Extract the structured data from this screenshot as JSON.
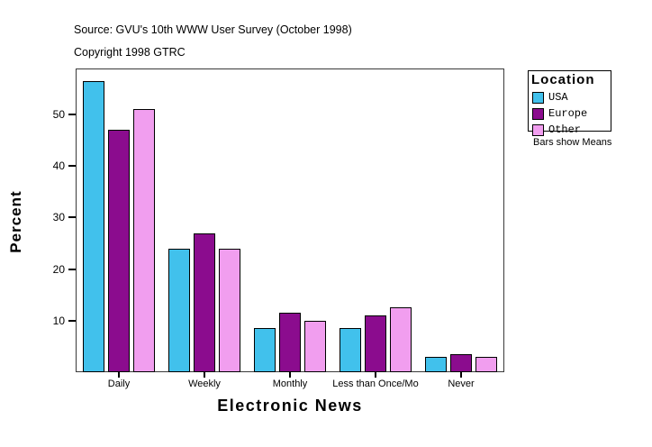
{
  "header": {
    "source_line": "Source: GVU's 10th WWW User Survey (October 1998)",
    "copyright_line": "Copyright 1998 GTRC"
  },
  "legend": {
    "title": "Location",
    "note": "Bars show Means",
    "items": [
      {
        "label": "USA",
        "color": "#41C1EC"
      },
      {
        "label": "Europe",
        "color": "#8B0C8E"
      },
      {
        "label": "Other",
        "color": "#F19EEF"
      }
    ]
  },
  "chart_data": {
    "type": "bar",
    "title": "",
    "xlabel": "Electronic News",
    "ylabel": "Percent",
    "categories": [
      "Daily",
      "Weekly",
      "Monthly",
      "Less than Once/Mo",
      "Never"
    ],
    "series": [
      {
        "name": "USA",
        "color": "#41C1EC",
        "values": [
          56.5,
          24,
          8.5,
          8.5,
          3
        ]
      },
      {
        "name": "Europe",
        "color": "#8B0C8E",
        "values": [
          47,
          27,
          11.5,
          11,
          3.5
        ]
      },
      {
        "name": "Other",
        "color": "#F19EEF",
        "values": [
          51,
          24,
          10,
          12.5,
          3
        ]
      }
    ],
    "yticks": [
      10,
      20,
      30,
      40,
      50
    ],
    "ylim": [
      0,
      58.9
    ],
    "grid": false,
    "legend_position": "right",
    "annotation": "Bars show Means"
  }
}
